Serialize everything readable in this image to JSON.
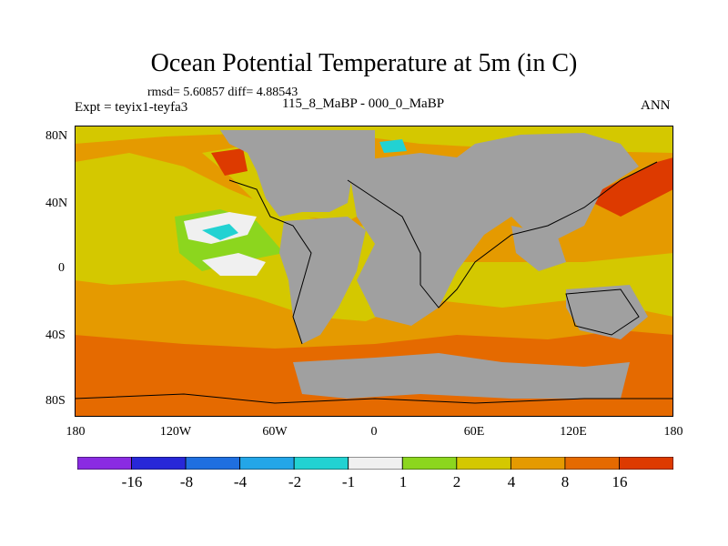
{
  "title": "Ocean Potential Temperature at 5m (in C)",
  "stats": "rmsd= 5.60857 diff= 4.88543",
  "experiment": "Expt = teyix1-teyfa3",
  "period": "115_8_MaBP - 000_0_MaBP",
  "season": "ANN",
  "axes": {
    "y_ticks": [
      "80N",
      "40N",
      "0",
      "40S",
      "80S"
    ],
    "x_ticks": [
      "180",
      "120W",
      "60W",
      "0",
      "60E",
      "120E",
      "180"
    ]
  },
  "colorbar": {
    "labels": [
      "-16",
      "-8",
      "-4",
      "-2",
      "-1",
      "1",
      "2",
      "4",
      "8",
      "16"
    ],
    "colors": [
      "#8a2be2",
      "#2727d8",
      "#1f6fe0",
      "#23a6e8",
      "#22d2d2",
      "#f0f0f0",
      "#8cd61e",
      "#d4c800",
      "#e59a00",
      "#e56a00",
      "#dd3a00"
    ]
  },
  "map_colors": {
    "land": "#a0a0a0",
    "ocean_base": "#e59a00",
    "southern_band": "#e56a00",
    "yellow_band": "#d4c800",
    "green": "#8cd61e",
    "cyan": "#22d2d2",
    "white": "#f0f0f0",
    "red": "#dd3a00"
  }
}
